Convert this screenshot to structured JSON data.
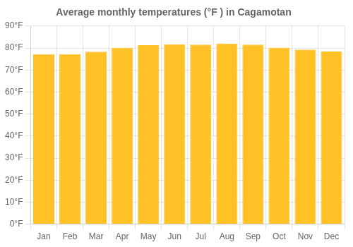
{
  "chart_data": {
    "type": "bar",
    "title": "Average monthly temperatures (°F ) in Cagamotan",
    "categories": [
      "Jan",
      "Feb",
      "Mar",
      "Apr",
      "May",
      "Jun",
      "Jul",
      "Aug",
      "Sep",
      "Oct",
      "Nov",
      "Dec"
    ],
    "values": [
      77.2,
      77.2,
      78.3,
      80.1,
      81.3,
      81.7,
      81.5,
      82.0,
      81.5,
      80.2,
      79.3,
      78.4
    ],
    "color": "#FFC125",
    "ylim": [
      0,
      90
    ],
    "yticks": [
      {
        "value": 0,
        "label": "0°F"
      },
      {
        "value": 10,
        "label": "10°F"
      },
      {
        "value": 20,
        "label": "20°F"
      },
      {
        "value": 30,
        "label": "30°F"
      },
      {
        "value": 40,
        "label": "40°F"
      },
      {
        "value": 50,
        "label": "50°F"
      },
      {
        "value": 60,
        "label": "60°F"
      },
      {
        "value": 70,
        "label": "70°F"
      },
      {
        "value": 80,
        "label": "80°F"
      },
      {
        "value": 90,
        "label": "90°F"
      }
    ],
    "grid": true
  }
}
